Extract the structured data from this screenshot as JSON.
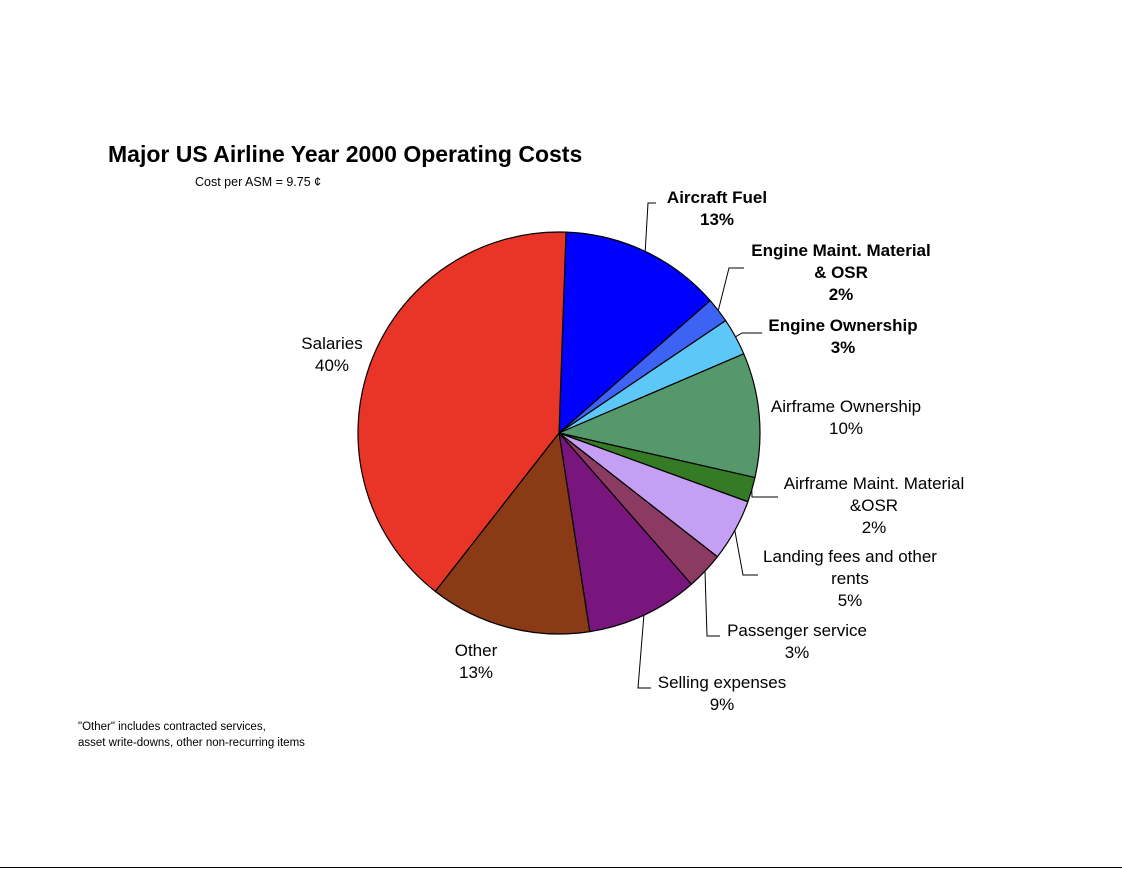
{
  "chart_data": {
    "type": "pie",
    "title": "Major US Airline Year 2000 Operating Costs",
    "subtitle": "Cost per ASM = 9.75 ¢",
    "footnote": [
      "\"Other\" includes contracted services,",
      "asset write-downs, other non-recurring items"
    ],
    "slices": [
      {
        "label": [
          "Aircraft Fuel"
        ],
        "value_text": "13%",
        "value": 13,
        "color": "#0000FF",
        "bold": true
      },
      {
        "label": [
          "Engine Maint. Material",
          "& OSR"
        ],
        "value_text": "2%",
        "value": 2,
        "color": "#3D63F4",
        "bold": true
      },
      {
        "label": [
          "Engine Ownership"
        ],
        "value_text": "3%",
        "value": 3,
        "color": "#5DC8F8",
        "bold": true
      },
      {
        "label": [
          "Airframe Ownership"
        ],
        "value_text": "10%",
        "value": 10,
        "color": "#55986B",
        "bold": false
      },
      {
        "label": [
          "Airframe Maint. Material",
          "&OSR"
        ],
        "value_text": "2%",
        "value": 2,
        "color": "#357A24",
        "bold": false
      },
      {
        "label": [
          "Landing fees and other",
          "rents"
        ],
        "value_text": "5%",
        "value": 5,
        "color": "#C49FF4",
        "bold": false
      },
      {
        "label": [
          "Passenger service"
        ],
        "value_text": "3%",
        "value": 3,
        "color": "#8C3A62",
        "bold": false
      },
      {
        "label": [
          "Selling expenses"
        ],
        "value_text": "9%",
        "value": 9,
        "color": "#78167E",
        "bold": false
      },
      {
        "label": [
          "Other"
        ],
        "value_text": "13%",
        "value": 13,
        "color": "#8B3A16",
        "bold": false
      },
      {
        "label": [
          "Salaries"
        ],
        "value_text": "40%",
        "value": 40,
        "color": "#E83528",
        "bold": false
      }
    ]
  }
}
